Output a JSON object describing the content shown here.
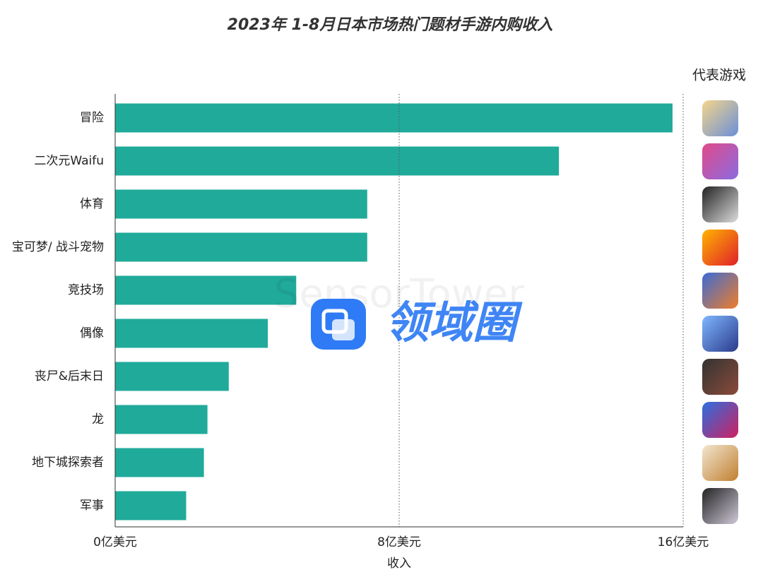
{
  "chart_data": {
    "type": "bar",
    "orientation": "horizontal",
    "title": "2023年 1-8月日本市场热门题材手游内购收入",
    "side_header": "代表游戏",
    "xlabel": "收入",
    "categories": [
      "冒险",
      "二次元Waifu",
      "体育",
      "宝可梦/ 战斗宠物",
      "竞技场",
      "偶像",
      "丧尸&后末日",
      "龙",
      "地下城探索者",
      "军事"
    ],
    "values": [
      15.7,
      12.5,
      7.1,
      7.1,
      5.1,
      4.3,
      3.2,
      2.6,
      2.5,
      2.0
    ],
    "color": "#20aa9a",
    "xlim": [
      0,
      16
    ],
    "xticks": [
      {
        "value": 0,
        "label": "0亿美元"
      },
      {
        "value": 8,
        "label": "8亿美元"
      },
      {
        "value": 16,
        "label": "16亿美元"
      }
    ],
    "grid": true,
    "watermarks": [
      "SensorTower",
      "领域圈"
    ]
  }
}
